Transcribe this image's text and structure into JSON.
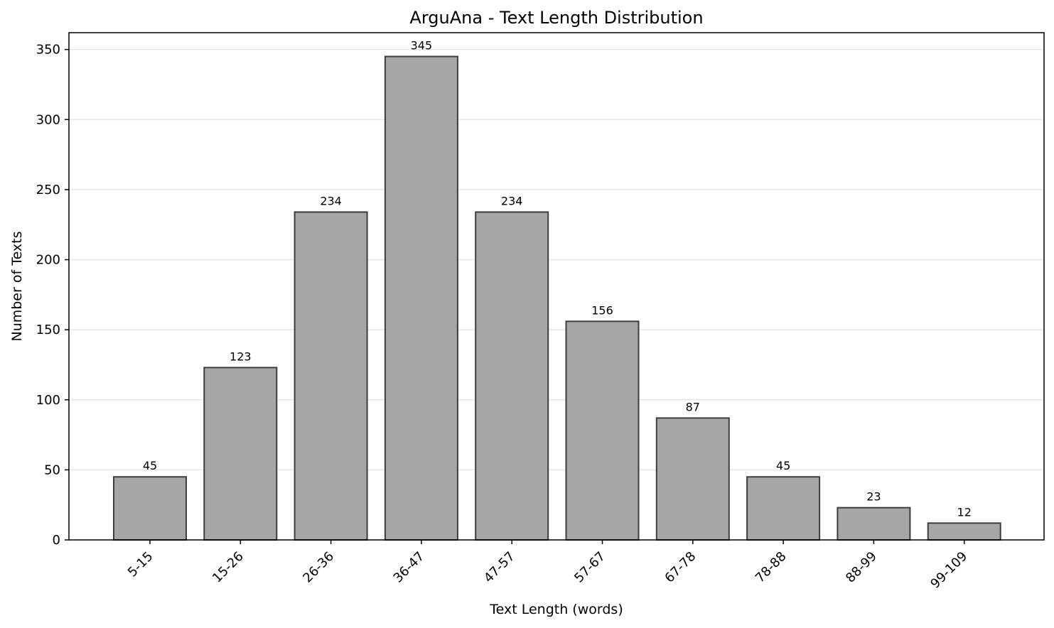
{
  "chart_data": {
    "type": "bar",
    "title": "ArguAna - Text Length Distribution",
    "xlabel": "Text Length (words)",
    "ylabel": "Number of Texts",
    "categories": [
      "5-15",
      "15-26",
      "26-36",
      "36-47",
      "47-57",
      "57-67",
      "67-78",
      "78-88",
      "88-99",
      "99-109"
    ],
    "values": [
      45,
      123,
      234,
      345,
      234,
      156,
      87,
      45,
      23,
      12
    ],
    "ylim": [
      0,
      362
    ],
    "yticks": [
      0,
      50,
      100,
      150,
      200,
      250,
      300,
      350
    ],
    "grid": "horizontal",
    "bar_color": "#a6a6a6",
    "bar_edge_color": "#3d3d3d",
    "data_labels": true,
    "legend": "none"
  }
}
